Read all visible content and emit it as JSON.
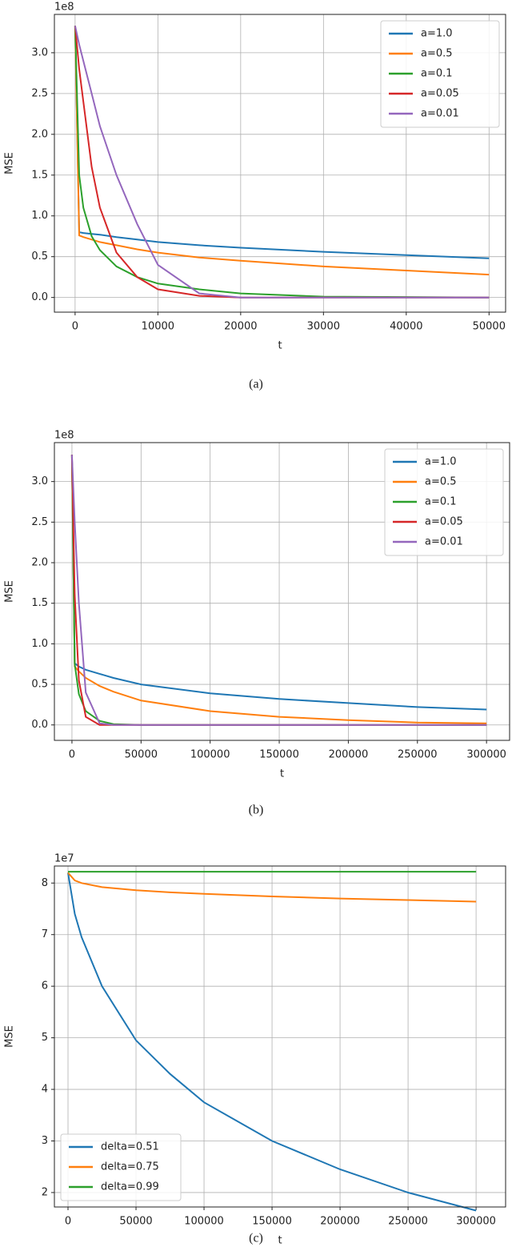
{
  "chart_data": [
    {
      "type": "line",
      "offset_label": "1e8",
      "xlabel": "t",
      "ylabel": "MSE",
      "caption": "(a)",
      "x": [
        0,
        500,
        1000,
        2000,
        3000,
        5000,
        7500,
        10000,
        15000,
        20000,
        30000,
        40000,
        50000
      ],
      "series": [
        {
          "name": "a=1.0",
          "color": "#1f77b4",
          "values": [
            3.33,
            0.8,
            0.79,
            0.78,
            0.77,
            0.74,
            0.71,
            0.68,
            0.64,
            0.61,
            0.56,
            0.52,
            0.48
          ]
        },
        {
          "name": "a=0.5",
          "color": "#ff7f0e",
          "values": [
            3.33,
            0.76,
            0.74,
            0.71,
            0.68,
            0.64,
            0.59,
            0.55,
            0.49,
            0.45,
            0.38,
            0.33,
            0.28
          ]
        },
        {
          "name": "a=0.1",
          "color": "#2ca02c",
          "values": [
            3.33,
            1.5,
            1.1,
            0.75,
            0.58,
            0.38,
            0.25,
            0.17,
            0.1,
            0.05,
            0.01,
            0.005,
            0
          ]
        },
        {
          "name": "a=0.05",
          "color": "#d62728",
          "values": [
            3.33,
            2.8,
            2.4,
            1.6,
            1.1,
            0.55,
            0.25,
            0.1,
            0.02,
            0,
            0,
            0,
            0
          ]
        },
        {
          "name": "a=0.01",
          "color": "#9467bd",
          "values": [
            3.33,
            3.1,
            2.9,
            2.5,
            2.1,
            1.5,
            0.9,
            0.4,
            0.05,
            0,
            0,
            0,
            0
          ]
        }
      ],
      "xlim": [
        -2500,
        52000
      ],
      "ylim": [
        -0.18,
        3.47
      ],
      "xticks": [
        0,
        10000,
        20000,
        30000,
        40000,
        50000
      ],
      "yticks": [
        {
          "value": 0,
          "label": "0.0"
        },
        0.5,
        {
          "value": 1,
          "label": "1.0"
        },
        1.5,
        {
          "value": 2,
          "label": "2.0"
        },
        2.5,
        {
          "value": 3,
          "label": "3.0"
        }
      ],
      "grid": true,
      "legend": "upper right"
    },
    {
      "type": "line",
      "offset_label": "1e8",
      "xlabel": "t",
      "ylabel": "MSE",
      "caption": "(b)",
      "x": [
        0,
        2000,
        5000,
        10000,
        20000,
        30000,
        50000,
        100000,
        150000,
        200000,
        250000,
        300000
      ],
      "series": [
        {
          "name": "a=1.0",
          "color": "#1f77b4",
          "values": [
            3.33,
            0.76,
            0.72,
            0.68,
            0.63,
            0.58,
            0.5,
            0.39,
            0.32,
            0.27,
            0.22,
            0.19
          ]
        },
        {
          "name": "a=0.5",
          "color": "#ff7f0e",
          "values": [
            3.33,
            0.72,
            0.66,
            0.58,
            0.48,
            0.41,
            0.3,
            0.17,
            0.1,
            0.06,
            0.03,
            0.02
          ]
        },
        {
          "name": "a=0.1",
          "color": "#2ca02c",
          "values": [
            3.33,
            0.75,
            0.38,
            0.17,
            0.05,
            0.01,
            0,
            0,
            0,
            0,
            0,
            0
          ]
        },
        {
          "name": "a=0.05",
          "color": "#d62728",
          "values": [
            3.33,
            1.6,
            0.55,
            0.1,
            0,
            0,
            0,
            0,
            0,
            0,
            0,
            0
          ]
        },
        {
          "name": "a=0.01",
          "color": "#9467bd",
          "values": [
            3.33,
            2.5,
            1.5,
            0.4,
            0.02,
            0,
            0,
            0,
            0,
            0,
            0,
            0
          ]
        }
      ],
      "xlim": [
        -12700,
        316700
      ],
      "ylim": [
        -0.19,
        3.48
      ],
      "xticks": [
        0,
        50000,
        100000,
        150000,
        200000,
        250000,
        300000
      ],
      "yticks": [
        {
          "value": 0,
          "label": "0.0"
        },
        0.5,
        {
          "value": 1,
          "label": "1.0"
        },
        1.5,
        {
          "value": 2,
          "label": "2.0"
        },
        2.5,
        {
          "value": 3,
          "label": "3.0"
        }
      ],
      "grid": true,
      "legend": "upper right"
    },
    {
      "type": "line",
      "offset_label": "1e7",
      "xlabel": "t",
      "ylabel": "MSE",
      "caption": "(c)",
      "x": [
        0,
        5000,
        10000,
        25000,
        50000,
        75000,
        100000,
        150000,
        200000,
        250000,
        300000
      ],
      "series": [
        {
          "name": "delta=0.51",
          "color": "#1f77b4",
          "values": [
            8.2,
            7.4,
            6.95,
            6.0,
            4.95,
            4.3,
            3.75,
            3.0,
            2.45,
            2.0,
            1.65
          ]
        },
        {
          "name": "delta=0.75",
          "color": "#ff7f0e",
          "values": [
            8.2,
            8.05,
            8.0,
            7.92,
            7.86,
            7.82,
            7.79,
            7.74,
            7.7,
            7.67,
            7.64
          ]
        },
        {
          "name": "delta=0.99",
          "color": "#2ca02c",
          "values": [
            8.22,
            8.22,
            8.22,
            8.22,
            8.22,
            8.22,
            8.22,
            8.22,
            8.22,
            8.22,
            8.22
          ]
        }
      ],
      "xlim": [
        -10000,
        321700
      ],
      "ylim": [
        1.72,
        8.33
      ],
      "xticks": [
        0,
        50000,
        100000,
        150000,
        200000,
        250000,
        300000
      ],
      "yticks": [
        2,
        3,
        4,
        5,
        6,
        7,
        8
      ],
      "grid": true,
      "legend": "lower left"
    }
  ]
}
